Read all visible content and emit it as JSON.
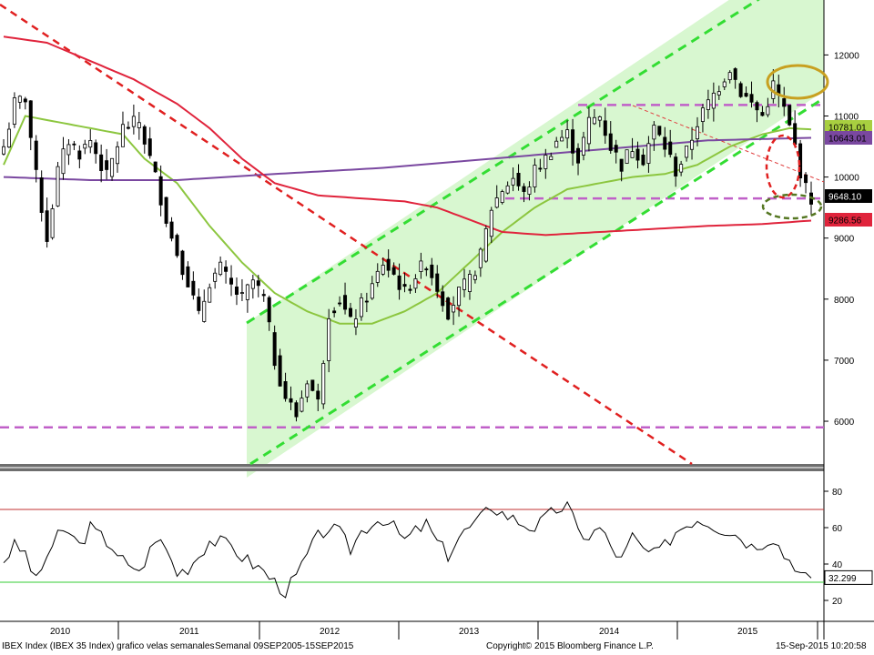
{
  "chart_data": {
    "type": "candlestick",
    "title": "IBEX Index (IBEX 35 Index) grafico velas semanales",
    "period": "Semanal 09SEP2005-15SEP2015",
    "copyright": "Copyright© 2015 Bloomberg Finance L.P.",
    "timestamp": "15-Sep-2015 10:20:58",
    "x_labels": [
      "2010",
      "2011",
      "2012",
      "2013",
      "2014",
      "2015"
    ],
    "price_panel": {
      "ylim": [
        5300,
        12900
      ],
      "y_ticks": [
        "6000",
        "7000",
        "8000",
        "9000",
        "10000",
        "11000",
        "12000"
      ],
      "tags": [
        {
          "label": "10781.01",
          "value": 10781.01,
          "color": "#a8cf40"
        },
        {
          "label": "10643.01",
          "value": 10643.01,
          "color": "#7a48a0"
        },
        {
          "label": "9648.10",
          "value": 9648.1,
          "color": "#000000"
        },
        {
          "label": "9286.56",
          "value": 9286.56,
          "color": "#e0243c"
        }
      ],
      "support_levels": [
        {
          "value": 5900,
          "color": "#c060c8"
        },
        {
          "value": 9650,
          "color": "#c060c8"
        },
        {
          "value": 11180,
          "color": "#c060c8"
        }
      ],
      "weekly_close_anchors": [
        [
          0,
          10500
        ],
        [
          2,
          11200
        ],
        [
          4,
          11300
        ],
        [
          6,
          10000
        ],
        [
          8,
          9000
        ],
        [
          10,
          10100
        ],
        [
          12,
          10600
        ],
        [
          14,
          10400
        ],
        [
          16,
          10600
        ],
        [
          19,
          10000
        ],
        [
          22,
          10800
        ],
        [
          25,
          10900
        ],
        [
          28,
          10000
        ],
        [
          31,
          9000
        ],
        [
          34,
          8300
        ],
        [
          36,
          7700
        ],
        [
          38,
          8300
        ],
        [
          40,
          8500
        ],
        [
          42,
          8200
        ],
        [
          44,
          8000
        ],
        [
          46,
          8300
        ],
        [
          48,
          8000
        ],
        [
          50,
          7000
        ],
        [
          52,
          6400
        ],
        [
          54,
          6100
        ],
        [
          56,
          6700
        ],
        [
          58,
          6300
        ],
        [
          60,
          7800
        ],
        [
          62,
          8000
        ],
        [
          64,
          7600
        ],
        [
          66,
          7900
        ],
        [
          68,
          8200
        ],
        [
          70,
          8600
        ],
        [
          72,
          8400
        ],
        [
          74,
          8100
        ],
        [
          76,
          8400
        ],
        [
          78,
          8600
        ],
        [
          80,
          8200
        ],
        [
          82,
          7800
        ],
        [
          84,
          8100
        ],
        [
          86,
          8300
        ],
        [
          88,
          8700
        ],
        [
          90,
          9500
        ],
        [
          92,
          9800
        ],
        [
          94,
          10000
        ],
        [
          96,
          9700
        ],
        [
          98,
          10100
        ],
        [
          100,
          10300
        ],
        [
          102,
          10600
        ],
        [
          104,
          10700
        ],
        [
          106,
          10300
        ],
        [
          108,
          10900
        ],
        [
          110,
          11000
        ],
        [
          112,
          10500
        ],
        [
          114,
          10200
        ],
        [
          116,
          10500
        ],
        [
          118,
          10300
        ],
        [
          120,
          10800
        ],
        [
          122,
          10500
        ],
        [
          124,
          10100
        ],
        [
          126,
          10400
        ],
        [
          128,
          10900
        ],
        [
          130,
          11200
        ],
        [
          132,
          11500
        ],
        [
          134,
          11800
        ],
        [
          136,
          11400
        ],
        [
          138,
          11200
        ],
        [
          140,
          11000
        ],
        [
          142,
          11500
        ],
        [
          144,
          11100
        ],
        [
          146,
          10500
        ],
        [
          147,
          10100
        ],
        [
          148,
          9800
        ],
        [
          149,
          9650
        ]
      ],
      "moving_averages": [
        {
          "name": "40w",
          "color": "#8cc63f",
          "points": [
            [
              0,
              10200
            ],
            [
              4,
              11000
            ],
            [
              10,
              10900
            ],
            [
              16,
              10800
            ],
            [
              22,
              10700
            ],
            [
              26,
              10300
            ],
            [
              32,
              9900
            ],
            [
              38,
              9200
            ],
            [
              44,
              8600
            ],
            [
              50,
              8100
            ],
            [
              56,
              7800
            ],
            [
              62,
              7600
            ],
            [
              68,
              7600
            ],
            [
              74,
              7800
            ],
            [
              80,
              8100
            ],
            [
              86,
              8600
            ],
            [
              92,
              9100
            ],
            [
              98,
              9500
            ],
            [
              104,
              9800
            ],
            [
              110,
              9900
            ],
            [
              116,
              10000
            ],
            [
              122,
              10050
            ],
            [
              128,
              10200
            ],
            [
              134,
              10500
            ],
            [
              140,
              10700
            ],
            [
              145,
              10800
            ],
            [
              149,
              10781
            ]
          ]
        },
        {
          "name": "200w",
          "color": "#7a48a0",
          "points": [
            [
              0,
              10000
            ],
            [
              16,
              9950
            ],
            [
              32,
              9950
            ],
            [
              50,
              10050
            ],
            [
              70,
              10150
            ],
            [
              90,
              10300
            ],
            [
              110,
              10450
            ],
            [
              130,
              10600
            ],
            [
              149,
              10643
            ]
          ]
        },
        {
          "name": "100w",
          "color": "#e0243c",
          "points": [
            [
              0,
              12300
            ],
            [
              8,
              12200
            ],
            [
              16,
              11900
            ],
            [
              24,
              11600
            ],
            [
              32,
              11200
            ],
            [
              38,
              10800
            ],
            [
              44,
              10300
            ],
            [
              50,
              9900
            ],
            [
              58,
              9700
            ],
            [
              66,
              9650
            ],
            [
              74,
              9600
            ],
            [
              80,
              9500
            ],
            [
              86,
              9300
            ],
            [
              92,
              9100
            ],
            [
              100,
              9050
            ],
            [
              110,
              9100
            ],
            [
              120,
              9150
            ],
            [
              130,
              9200
            ],
            [
              140,
              9230
            ],
            [
              149,
              9287
            ]
          ]
        }
      ]
    },
    "rsi_panel": {
      "ylim": [
        10,
        90
      ],
      "y_ticks": [
        "20",
        "40",
        "60",
        "80"
      ],
      "overbought": 70,
      "oversold": 30,
      "last_label": "32.299",
      "last_value": 32.299,
      "anchors": [
        [
          0,
          42
        ],
        [
          2,
          50
        ],
        [
          4,
          46
        ],
        [
          6,
          30
        ],
        [
          8,
          45
        ],
        [
          10,
          55
        ],
        [
          12,
          58
        ],
        [
          14,
          50
        ],
        [
          16,
          60
        ],
        [
          18,
          55
        ],
        [
          20,
          50
        ],
        [
          22,
          42
        ],
        [
          24,
          35
        ],
        [
          26,
          40
        ],
        [
          28,
          55
        ],
        [
          30,
          48
        ],
        [
          32,
          35
        ],
        [
          34,
          38
        ],
        [
          36,
          45
        ],
        [
          38,
          53
        ],
        [
          40,
          52
        ],
        [
          42,
          50
        ],
        [
          44,
          44
        ],
        [
          46,
          40
        ],
        [
          48,
          36
        ],
        [
          50,
          30
        ],
        [
          52,
          25
        ],
        [
          54,
          33
        ],
        [
          56,
          45
        ],
        [
          58,
          55
        ],
        [
          60,
          60
        ],
        [
          62,
          57
        ],
        [
          64,
          48
        ],
        [
          66,
          58
        ],
        [
          68,
          63
        ],
        [
          70,
          65
        ],
        [
          72,
          60
        ],
        [
          74,
          53
        ],
        [
          76,
          58
        ],
        [
          78,
          62
        ],
        [
          80,
          52
        ],
        [
          82,
          45
        ],
        [
          84,
          55
        ],
        [
          86,
          60
        ],
        [
          88,
          65
        ],
        [
          90,
          72
        ],
        [
          92,
          68
        ],
        [
          94,
          65
        ],
        [
          96,
          62
        ],
        [
          98,
          60
        ],
        [
          100,
          65
        ],
        [
          102,
          70
        ],
        [
          104,
          72
        ],
        [
          106,
          58
        ],
        [
          108,
          55
        ],
        [
          110,
          60
        ],
        [
          112,
          50
        ],
        [
          114,
          42
        ],
        [
          116,
          55
        ],
        [
          118,
          48
        ],
        [
          120,
          45
        ],
        [
          122,
          50
        ],
        [
          124,
          58
        ],
        [
          126,
          62
        ],
        [
          128,
          65
        ],
        [
          130,
          63
        ],
        [
          132,
          60
        ],
        [
          134,
          58
        ],
        [
          136,
          55
        ],
        [
          138,
          50
        ],
        [
          140,
          52
        ],
        [
          142,
          55
        ],
        [
          144,
          45
        ],
        [
          146,
          40
        ],
        [
          147,
          35
        ],
        [
          148,
          33
        ],
        [
          149,
          32.3
        ]
      ]
    }
  }
}
